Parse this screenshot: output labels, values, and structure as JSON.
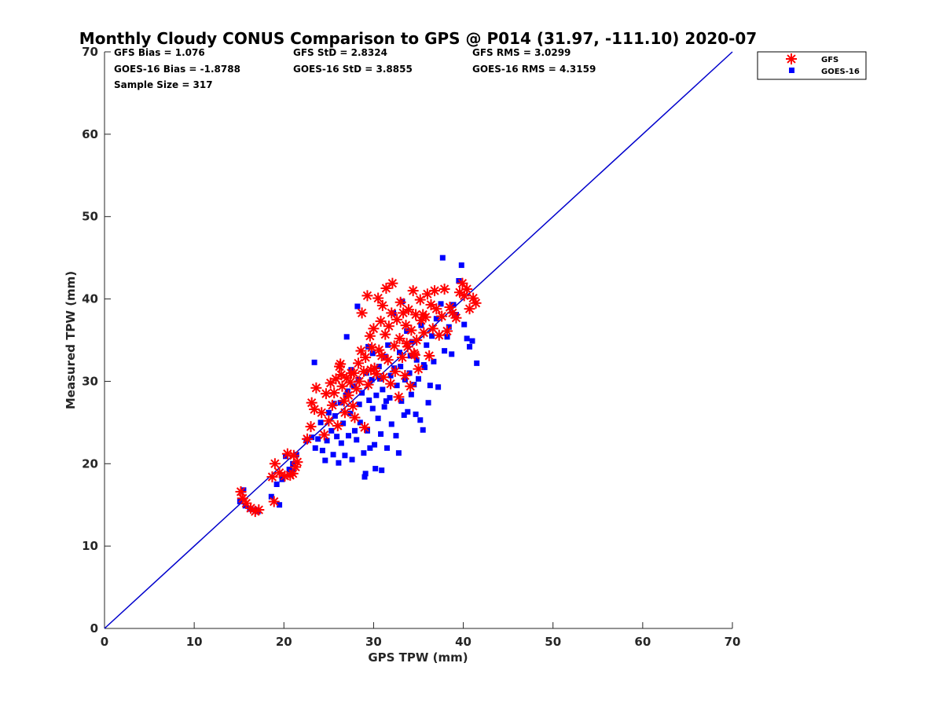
{
  "chart_data": {
    "type": "scatter",
    "title": "Monthly Cloudy CONUS Comparison to GPS @ P014 (31.97, -111.10) 2020-07",
    "xlabel": "GPS TPW (mm)",
    "ylabel": "Measured TPW (mm)",
    "xlim": [
      0,
      70
    ],
    "ylim": [
      0,
      70
    ],
    "xticks": [
      0,
      10,
      20,
      30,
      40,
      50,
      60,
      70
    ],
    "yticks": [
      0,
      10,
      20,
      30,
      40,
      50,
      60,
      70
    ],
    "grid": false,
    "legend_position": "outside-top-right",
    "stats": [
      [
        "GFS Bias = 1.076",
        "GFS StD = 2.8324",
        "GFS RMS = 3.0299"
      ],
      [
        "GOES-16 Bias = -1.8788",
        "GOES-16 StD = 3.8855",
        "GOES-16 RMS = 4.3159"
      ],
      [
        "Sample Size = 317"
      ]
    ],
    "reference_line": {
      "x": [
        0,
        70
      ],
      "y": [
        0,
        70
      ],
      "color": "#0000cc"
    },
    "series": [
      {
        "name": "GFS",
        "marker": "asterisk",
        "color": "#ff0000",
        "points": [
          [
            15.2,
            16.6
          ],
          [
            15.4,
            15.8
          ],
          [
            15.8,
            15.2
          ],
          [
            16.3,
            14.6
          ],
          [
            16.8,
            14.2
          ],
          [
            17.2,
            14.4
          ],
          [
            18.9,
            15.4
          ],
          [
            18.7,
            18.4
          ],
          [
            19.0,
            20.0
          ],
          [
            19.5,
            18.9
          ],
          [
            20.1,
            18.5
          ],
          [
            20.4,
            21.2
          ],
          [
            20.7,
            18.6
          ],
          [
            21.0,
            18.8
          ],
          [
            21.3,
            19.6
          ],
          [
            21.5,
            20.2
          ],
          [
            21.1,
            21.0
          ],
          [
            22.6,
            23.0
          ],
          [
            23.0,
            24.5
          ],
          [
            23.1,
            27.4
          ],
          [
            23.4,
            26.6
          ],
          [
            23.6,
            29.2
          ],
          [
            24.2,
            26.2
          ],
          [
            24.5,
            23.5
          ],
          [
            24.7,
            28.5
          ],
          [
            25.0,
            25.2
          ],
          [
            25.2,
            29.8
          ],
          [
            25.4,
            27.1
          ],
          [
            25.6,
            28.6
          ],
          [
            25.8,
            30.3
          ],
          [
            26.0,
            24.6
          ],
          [
            26.2,
            31.8
          ],
          [
            26.3,
            32.1
          ],
          [
            26.5,
            29.4
          ],
          [
            26.7,
            27.6
          ],
          [
            26.8,
            26.2
          ],
          [
            27.0,
            30.4
          ],
          [
            27.2,
            28.3
          ],
          [
            27.4,
            29.9
          ],
          [
            27.5,
            31.0
          ],
          [
            27.7,
            27.0
          ],
          [
            27.9,
            25.6
          ],
          [
            28.1,
            29.1
          ],
          [
            28.3,
            32.2
          ],
          [
            28.4,
            30.0
          ],
          [
            28.6,
            33.7
          ],
          [
            28.7,
            38.3
          ],
          [
            28.9,
            31.2
          ],
          [
            29.0,
            24.4
          ],
          [
            29.1,
            32.9
          ],
          [
            29.3,
            40.4
          ],
          [
            29.4,
            29.6
          ],
          [
            29.6,
            35.5
          ],
          [
            29.8,
            34.1
          ],
          [
            30.0,
            36.4
          ],
          [
            30.1,
            31.6
          ],
          [
            30.3,
            30.9
          ],
          [
            30.5,
            40.1
          ],
          [
            30.6,
            33.8
          ],
          [
            30.8,
            37.3
          ],
          [
            31.0,
            39.2
          ],
          [
            31.1,
            30.5
          ],
          [
            31.3,
            35.7
          ],
          [
            31.4,
            41.3
          ],
          [
            31.6,
            32.6
          ],
          [
            31.7,
            36.7
          ],
          [
            31.9,
            29.7
          ],
          [
            32.0,
            38.3
          ],
          [
            32.1,
            41.9
          ],
          [
            32.3,
            34.3
          ],
          [
            32.4,
            31.2
          ],
          [
            32.6,
            37.5
          ],
          [
            32.8,
            28.1
          ],
          [
            32.9,
            35.2
          ],
          [
            33.0,
            39.6
          ],
          [
            33.2,
            32.9
          ],
          [
            33.3,
            38.3
          ],
          [
            33.5,
            30.7
          ],
          [
            33.6,
            36.8
          ],
          [
            33.8,
            34.2
          ],
          [
            33.9,
            38.7
          ],
          [
            34.1,
            29.4
          ],
          [
            34.2,
            36.2
          ],
          [
            34.4,
            41.0
          ],
          [
            34.5,
            33.4
          ],
          [
            34.7,
            38.1
          ],
          [
            34.8,
            35.0
          ],
          [
            35.0,
            31.5
          ],
          [
            35.2,
            39.9
          ],
          [
            35.3,
            37.4
          ],
          [
            35.5,
            38.1
          ],
          [
            35.6,
            35.9
          ],
          [
            35.8,
            37.8
          ],
          [
            36.0,
            40.6
          ],
          [
            36.2,
            33.1
          ],
          [
            36.4,
            39.3
          ],
          [
            36.6,
            36.4
          ],
          [
            36.8,
            41.0
          ],
          [
            37.0,
            38.8
          ],
          [
            37.3,
            35.6
          ],
          [
            37.6,
            37.9
          ],
          [
            37.9,
            41.2
          ],
          [
            38.2,
            36.1
          ],
          [
            38.5,
            39.0
          ],
          [
            38.8,
            38.3
          ],
          [
            39.2,
            37.7
          ],
          [
            39.6,
            40.8
          ],
          [
            39.9,
            41.9
          ],
          [
            40.1,
            40.4
          ],
          [
            40.4,
            41.2
          ],
          [
            40.7,
            38.8
          ],
          [
            41.1,
            40.1
          ],
          [
            41.4,
            39.5
          ],
          [
            34.6,
            33.2
          ],
          [
            33.7,
            34.6
          ],
          [
            30.9,
            33.1
          ],
          [
            29.7,
            31.4
          ],
          [
            27.8,
            31.0
          ],
          [
            26.4,
            30.8
          ]
        ]
      },
      {
        "name": "GOES-16",
        "marker": "square",
        "color": "#0000ff",
        "points": [
          [
            15.1,
            15.4
          ],
          [
            15.5,
            16.8
          ],
          [
            15.7,
            14.9
          ],
          [
            16.2,
            14.5
          ],
          [
            16.8,
            14.4
          ],
          [
            17.1,
            14.2
          ],
          [
            18.6,
            16.0
          ],
          [
            19.2,
            17.5
          ],
          [
            19.8,
            18.1
          ],
          [
            20.2,
            20.9
          ],
          [
            20.6,
            19.3
          ],
          [
            21.0,
            20.0
          ],
          [
            21.4,
            21.1
          ],
          [
            20.9,
            19.1
          ],
          [
            19.5,
            15.0
          ],
          [
            22.5,
            22.8
          ],
          [
            23.1,
            23.2
          ],
          [
            23.4,
            32.3
          ],
          [
            23.5,
            21.9
          ],
          [
            23.8,
            23.0
          ],
          [
            24.3,
            21.6
          ],
          [
            24.6,
            20.4
          ],
          [
            24.8,
            22.8
          ],
          [
            25.0,
            26.2
          ],
          [
            25.3,
            24.0
          ],
          [
            25.5,
            21.1
          ],
          [
            25.7,
            25.8
          ],
          [
            25.9,
            23.3
          ],
          [
            26.1,
            20.1
          ],
          [
            26.3,
            27.4
          ],
          [
            26.4,
            22.5
          ],
          [
            26.6,
            24.9
          ],
          [
            26.8,
            21.0
          ],
          [
            27.0,
            35.4
          ],
          [
            27.1,
            28.8
          ],
          [
            27.2,
            23.4
          ],
          [
            27.4,
            26.1
          ],
          [
            27.6,
            20.5
          ],
          [
            27.8,
            29.4
          ],
          [
            27.9,
            24.0
          ],
          [
            28.1,
            22.9
          ],
          [
            28.2,
            39.1
          ],
          [
            28.4,
            27.2
          ],
          [
            28.5,
            25.0
          ],
          [
            28.7,
            28.6
          ],
          [
            28.9,
            21.3
          ],
          [
            29.0,
            18.4
          ],
          [
            29.1,
            18.8
          ],
          [
            29.2,
            31.0
          ],
          [
            29.3,
            24.0
          ],
          [
            29.5,
            27.7
          ],
          [
            29.6,
            21.9
          ],
          [
            29.8,
            30.2
          ],
          [
            29.9,
            33.4
          ],
          [
            30.1,
            22.3
          ],
          [
            30.2,
            19.4
          ],
          [
            30.3,
            28.3
          ],
          [
            30.5,
            25.5
          ],
          [
            30.6,
            31.8
          ],
          [
            30.8,
            23.6
          ],
          [
            30.9,
            19.2
          ],
          [
            31.0,
            29.0
          ],
          [
            31.2,
            26.9
          ],
          [
            31.3,
            33.0
          ],
          [
            31.5,
            21.9
          ],
          [
            31.6,
            34.4
          ],
          [
            31.8,
            28.0
          ],
          [
            31.9,
            30.7
          ],
          [
            32.0,
            24.8
          ],
          [
            32.2,
            38.3
          ],
          [
            32.3,
            31.6
          ],
          [
            32.5,
            23.4
          ],
          [
            32.6,
            29.5
          ],
          [
            32.8,
            21.3
          ],
          [
            32.9,
            33.5
          ],
          [
            33.1,
            27.6
          ],
          [
            33.2,
            39.7
          ],
          [
            33.4,
            25.9
          ],
          [
            33.5,
            30.2
          ],
          [
            33.7,
            36.1
          ],
          [
            33.8,
            26.3
          ],
          [
            34.0,
            31.0
          ],
          [
            34.2,
            28.4
          ],
          [
            34.3,
            34.8
          ],
          [
            34.5,
            29.6
          ],
          [
            34.7,
            26.0
          ],
          [
            34.8,
            32.6
          ],
          [
            35.0,
            30.3
          ],
          [
            35.2,
            25.3
          ],
          [
            35.3,
            36.8
          ],
          [
            35.5,
            24.1
          ],
          [
            35.7,
            31.7
          ],
          [
            35.9,
            34.4
          ],
          [
            36.1,
            27.4
          ],
          [
            36.3,
            29.5
          ],
          [
            36.5,
            35.5
          ],
          [
            36.7,
            32.4
          ],
          [
            37.0,
            37.6
          ],
          [
            37.2,
            29.3
          ],
          [
            37.5,
            39.4
          ],
          [
            37.7,
            45.0
          ],
          [
            37.9,
            33.7
          ],
          [
            38.2,
            35.4
          ],
          [
            38.4,
            36.6
          ],
          [
            38.7,
            33.3
          ],
          [
            38.9,
            39.3
          ],
          [
            39.2,
            38.1
          ],
          [
            39.5,
            42.2
          ],
          [
            39.8,
            44.1
          ],
          [
            40.1,
            36.9
          ],
          [
            40.4,
            35.2
          ],
          [
            40.7,
            34.2
          ],
          [
            41.0,
            34.9
          ],
          [
            41.5,
            32.2
          ],
          [
            26.9,
            28.3
          ],
          [
            28.3,
            30.2
          ],
          [
            29.4,
            34.2
          ],
          [
            30.7,
            30.3
          ],
          [
            31.4,
            27.6
          ],
          [
            33.0,
            31.8
          ],
          [
            34.1,
            33.1
          ],
          [
            35.6,
            32.0
          ],
          [
            27.5,
            31.4
          ],
          [
            25.6,
            27.3
          ],
          [
            24.1,
            25.0
          ],
          [
            29.9,
            26.7
          ]
        ]
      }
    ]
  }
}
